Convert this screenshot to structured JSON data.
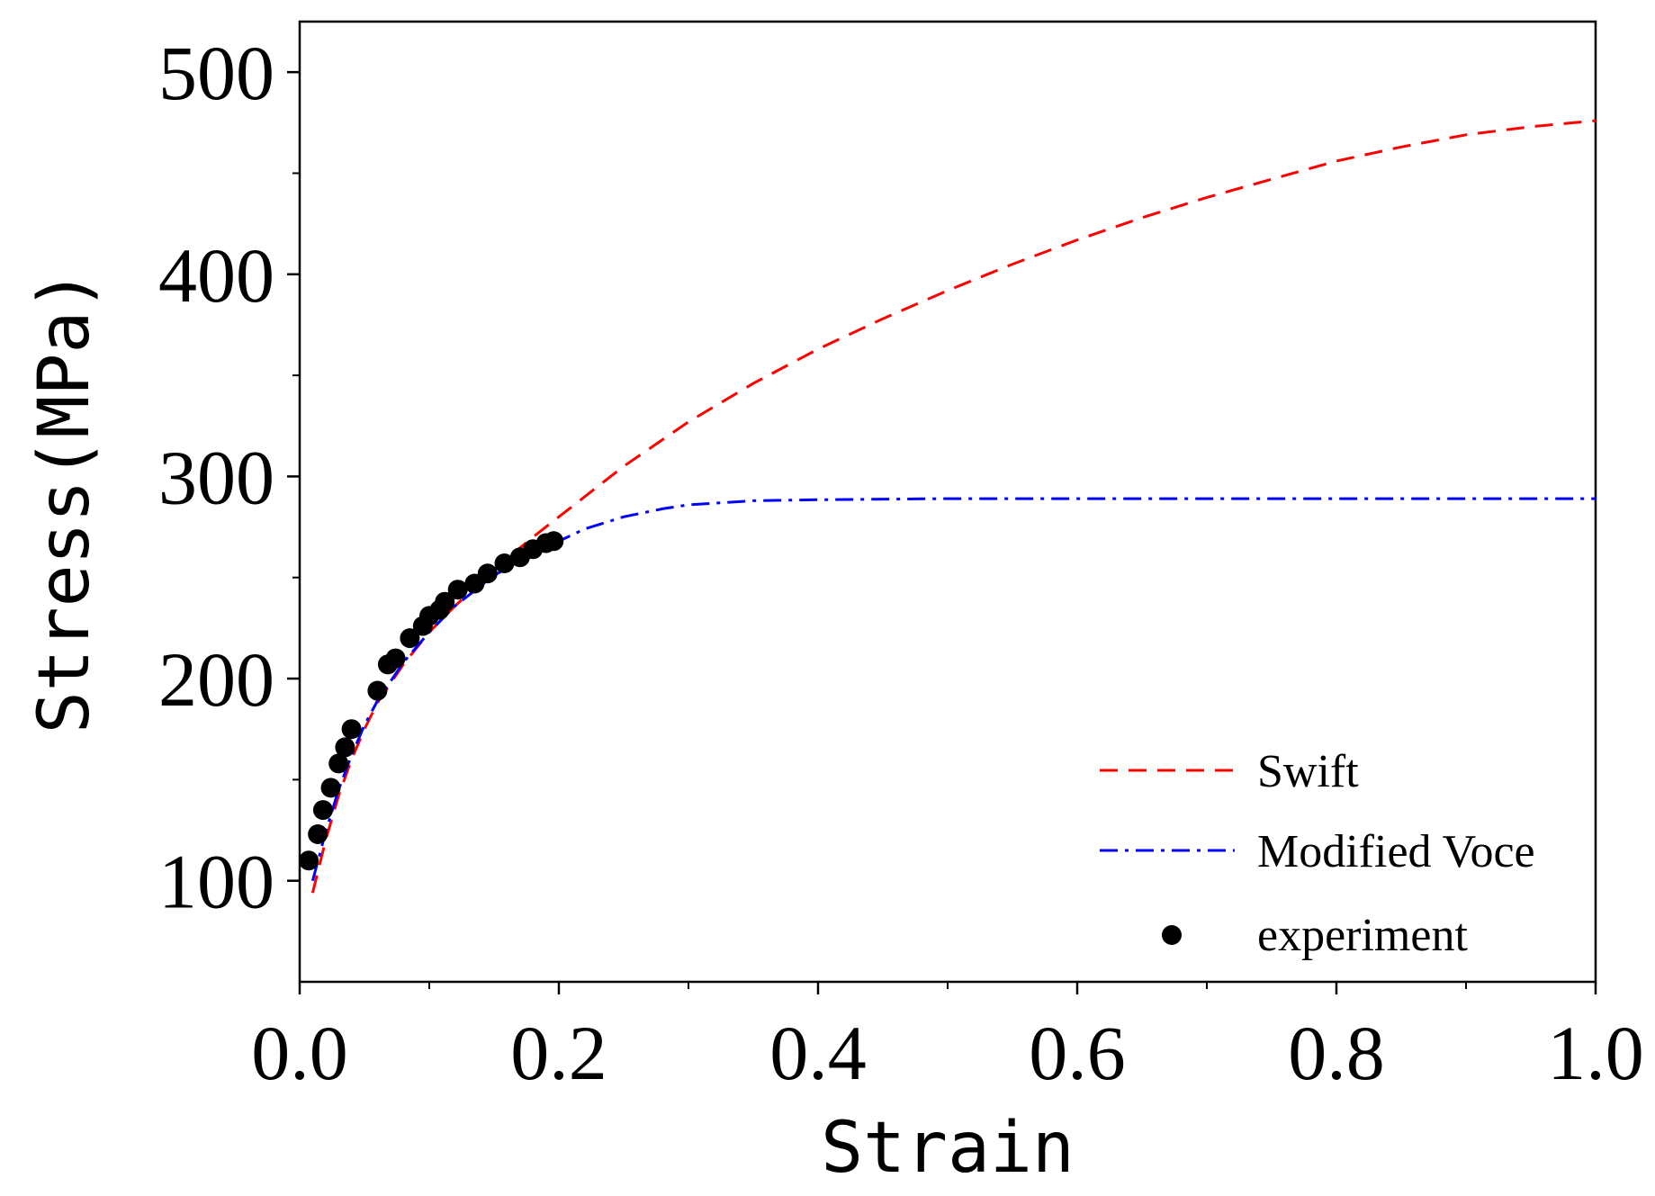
{
  "chart_data": {
    "type": "line",
    "title": "",
    "xlabel": "Strain",
    "ylabel_main": "Stress",
    "ylabel_unit": "(MPa)",
    "xlim": [
      0.0,
      1.0
    ],
    "ylim": [
      50,
      525
    ],
    "x_ticks": [
      0.0,
      0.2,
      0.4,
      0.6,
      0.8,
      1.0
    ],
    "x_tick_labels": [
      "0.0",
      "0.2",
      "0.4",
      "0.6",
      "0.8",
      "1.0"
    ],
    "x_minor_ticks": [
      0.1,
      0.3,
      0.5,
      0.7,
      0.9
    ],
    "y_ticks": [
      100,
      200,
      300,
      400,
      500
    ],
    "y_tick_labels": [
      "100",
      "200",
      "300",
      "400",
      "500"
    ],
    "y_minor_ticks": [
      150,
      250,
      350,
      450
    ],
    "grid": false,
    "legend_position": "bottom-right",
    "series": [
      {
        "name": "Swift",
        "style": "dashed",
        "color": "#ff0000",
        "x": [
          0.01,
          0.02,
          0.03,
          0.04,
          0.05,
          0.06,
          0.08,
          0.1,
          0.12,
          0.15,
          0.18,
          0.2,
          0.25,
          0.3,
          0.35,
          0.4,
          0.45,
          0.5,
          0.55,
          0.6,
          0.65,
          0.7,
          0.75,
          0.8,
          0.85,
          0.9,
          0.95,
          1.0
        ],
        "y": [
          94,
          120,
          142,
          160,
          175,
          188,
          207,
          223,
          236,
          254,
          270,
          280,
          305,
          327,
          346,
          363,
          378,
          392,
          405,
          417,
          428,
          438,
          447,
          456,
          463,
          469,
          473,
          476
        ]
      },
      {
        "name": "Modified Voce",
        "style": "dashdot",
        "color": "#0000ff",
        "x": [
          0.01,
          0.02,
          0.03,
          0.04,
          0.05,
          0.06,
          0.08,
          0.1,
          0.12,
          0.15,
          0.18,
          0.2,
          0.22,
          0.25,
          0.28,
          0.3,
          0.35,
          0.4,
          0.5,
          0.6,
          0.7,
          0.8,
          0.9,
          1.0
        ],
        "y": [
          100,
          124,
          145,
          162,
          177,
          189,
          208,
          223,
          236,
          251,
          262,
          268,
          274,
          280,
          284,
          286,
          288,
          288.5,
          289,
          289,
          289,
          289,
          289,
          289
        ]
      },
      {
        "name": "experiment",
        "style": "markers",
        "color": "#000000",
        "x": [
          0.007,
          0.014,
          0.018,
          0.024,
          0.03,
          0.035,
          0.04,
          0.06,
          0.068,
          0.074,
          0.085,
          0.095,
          0.1,
          0.108,
          0.112,
          0.122,
          0.135,
          0.145,
          0.158,
          0.17,
          0.18,
          0.19,
          0.196
        ],
        "y": [
          110,
          123,
          135,
          146,
          158,
          166,
          175,
          194,
          207,
          210,
          220,
          226,
          231,
          234,
          238,
          244,
          247,
          252,
          257,
          260,
          264,
          267,
          268
        ]
      }
    ]
  }
}
